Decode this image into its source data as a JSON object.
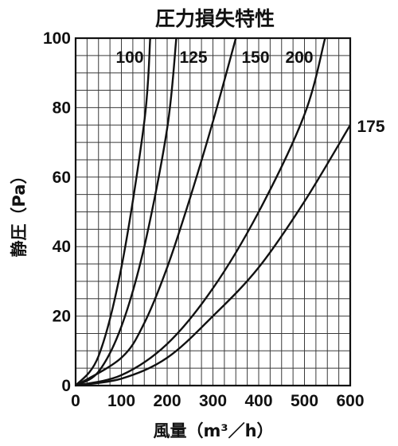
{
  "chart_data": {
    "type": "line",
    "title": "圧力損失特性",
    "xlabel": "風量（m³／h）",
    "ylabel": "静圧（Pa）",
    "xlim": [
      0,
      600
    ],
    "ylim": [
      0,
      100
    ],
    "x_ticks": [
      "0",
      "100",
      "200",
      "300",
      "400",
      "500",
      "600"
    ],
    "y_ticks": [
      "0",
      "20",
      "40",
      "60",
      "80",
      "100"
    ],
    "grid": true,
    "series": [
      {
        "name": "100",
        "x": [
          0,
          50,
          100,
          150,
          163
        ],
        "y": [
          0,
          8.5,
          34,
          76,
          100
        ]
      },
      {
        "name": "125",
        "x": [
          0,
          50,
          100,
          150,
          200,
          220
        ],
        "y": [
          0,
          4,
          17,
          40,
          74,
          100
        ]
      },
      {
        "name": "150",
        "x": [
          0,
          100,
          150,
          200,
          250,
          300,
          350
        ],
        "y": [
          0,
          8,
          18,
          34,
          54,
          76,
          100
        ]
      },
      {
        "name": "200",
        "x": [
          0,
          100,
          200,
          300,
          400,
          500,
          545
        ],
        "y": [
          0,
          3,
          12,
          28,
          50,
          78,
          100
        ]
      },
      {
        "name": "175",
        "x": [
          0,
          100,
          200,
          300,
          400,
          500,
          600
        ],
        "y": [
          0,
          2,
          8,
          20,
          34,
          53,
          75
        ]
      }
    ]
  }
}
